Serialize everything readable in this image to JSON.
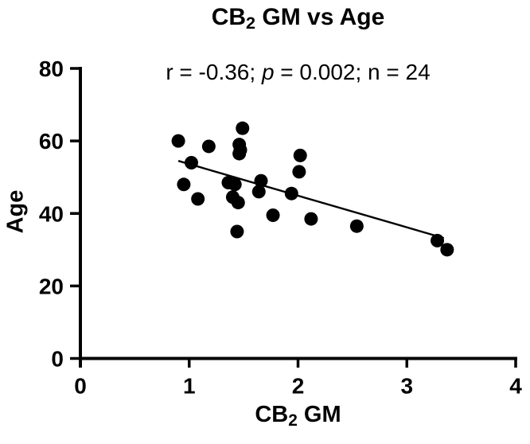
{
  "chart_data": {
    "type": "scatter",
    "title": {
      "pre": "CB",
      "sub": "2",
      "post": " GM vs Age"
    },
    "annotation": {
      "pre": "r = -0.36; ",
      "italic": "p",
      "post": " = 0.002; n = 24"
    },
    "xlabel": {
      "pre": "CB",
      "sub": "2",
      "post": " GM"
    },
    "ylabel": "Age",
    "xlim": [
      0,
      4
    ],
    "ylim": [
      0,
      80
    ],
    "xticks": [
      0,
      1,
      2,
      3,
      4
    ],
    "yticks": [
      0,
      20,
      40,
      60,
      80
    ],
    "grid": false,
    "legend": "none",
    "n": 24,
    "marker_color": "#000000",
    "line_color": "#000000",
    "background_color": "#ffffff",
    "points": [
      [
        0.9,
        60
      ],
      [
        0.95,
        48
      ],
      [
        1.02,
        54
      ],
      [
        1.08,
        44
      ],
      [
        1.18,
        58.5
      ],
      [
        1.36,
        48.5
      ],
      [
        1.42,
        48
      ],
      [
        1.4,
        44.5
      ],
      [
        1.45,
        43
      ],
      [
        1.44,
        35
      ],
      [
        1.46,
        59
      ],
      [
        1.47,
        57.5
      ],
      [
        1.46,
        56.5
      ],
      [
        1.49,
        63.5
      ],
      [
        1.64,
        46
      ],
      [
        1.66,
        49
      ],
      [
        1.77,
        39.5
      ],
      [
        1.94,
        45.5
      ],
      [
        2.01,
        51.5
      ],
      [
        2.02,
        56
      ],
      [
        2.12,
        38.5
      ],
      [
        2.54,
        36.5
      ],
      [
        3.28,
        32.5
      ],
      [
        3.37,
        30
      ]
    ],
    "trendline": {
      "x1": 0.9,
      "y1": 54.5,
      "x2": 3.34,
      "y2": 33.2
    }
  }
}
